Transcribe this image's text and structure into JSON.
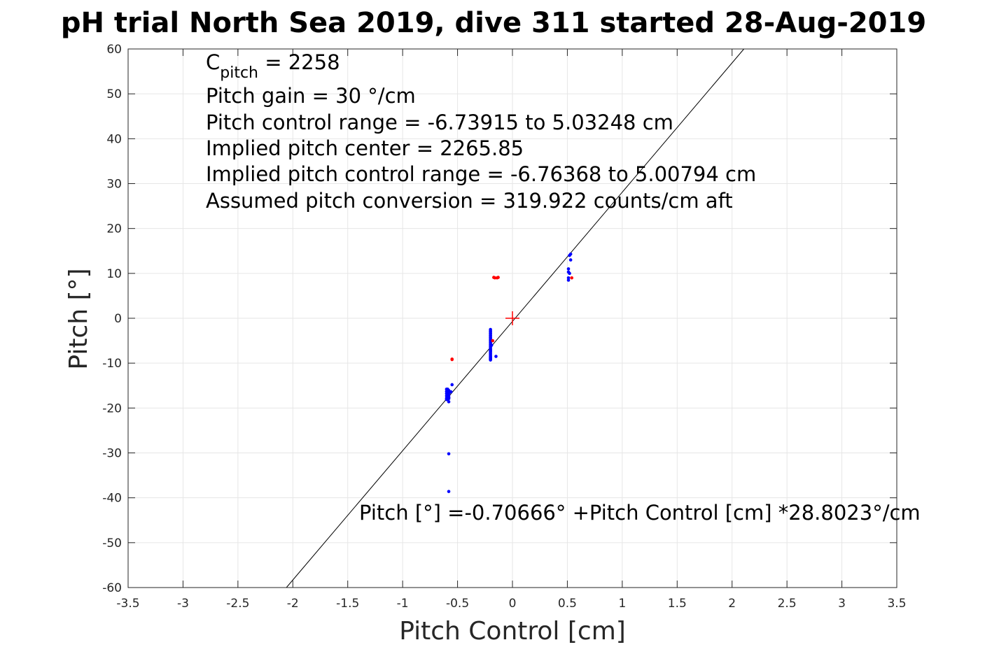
{
  "chart_data": {
    "type": "scatter",
    "title": "pH trial North Sea 2019, dive 311 started 28-Aug-2019",
    "xlabel": "Pitch Control [cm]",
    "ylabel": "Pitch [°]",
    "xlim": [
      -3.5,
      3.5
    ],
    "ylim": [
      -60,
      60
    ],
    "x_ticks": [
      -3.5,
      -3,
      -2.5,
      -2,
      -1.5,
      -1,
      -0.5,
      0,
      0.5,
      1,
      1.5,
      2,
      2.5,
      3,
      3.5
    ],
    "x_tick_labels": [
      "-3.5",
      "-3",
      "-2.5",
      "-2",
      "-1.5",
      "-1",
      "-0.5",
      "0",
      "0.5",
      "1",
      "1.5",
      "2",
      "2.5",
      "3",
      "3.5"
    ],
    "y_ticks": [
      -60,
      -50,
      -40,
      -30,
      -20,
      -10,
      0,
      10,
      20,
      30,
      40,
      50,
      60
    ],
    "y_tick_labels": [
      "-60",
      "-50",
      "-40",
      "-30",
      "-20",
      "-10",
      "0",
      "10",
      "20",
      "30",
      "40",
      "50",
      "60"
    ],
    "grid": true,
    "colors": {
      "blue_points": "#0000ff",
      "red_points": "#ff0000",
      "fit_line": "#000000",
      "grid": "#e6e6e6"
    },
    "annotations": {
      "c_pitch_main": "C",
      "c_pitch_sub": "pitch",
      "c_pitch_value": " = 2258",
      "lines": [
        "Pitch gain = 30 °/cm",
        "Pitch control range = -6.73915 to 5.03248 cm",
        "Implied pitch center = 2265.85",
        "Implied pitch control range = -6.76368 to 5.00794 cm",
        "Assumed pitch conversion = 319.922 counts/cm aft"
      ],
      "fit_equation": "Pitch [°] =-0.70666° +Pitch Control [cm] *28.8023°/cm"
    },
    "fit": {
      "intercept": -0.70666,
      "slope": 28.8023
    },
    "center_marker": {
      "x": 0,
      "y": 0
    },
    "series": [
      {
        "color": "blue",
        "x": [
          -0.6,
          -0.59,
          -0.6,
          -0.59,
          -0.58,
          -0.6,
          -0.59,
          -0.58,
          -0.6,
          -0.59,
          -0.58,
          -0.6,
          -0.59,
          -0.58,
          -0.6,
          -0.59,
          -0.58,
          -0.58,
          -0.58,
          -0.56,
          -0.55,
          -0.58,
          -0.58,
          -0.2,
          -0.2,
          -0.2,
          -0.2,
          -0.2,
          -0.2,
          -0.2,
          -0.2,
          -0.2,
          -0.2,
          -0.2,
          -0.2,
          -0.2,
          -0.2,
          -0.2,
          -0.2,
          -0.2,
          -0.2,
          -0.2,
          -0.2,
          -0.2,
          -0.2,
          -0.2,
          -0.2,
          -0.2,
          -0.2,
          -0.2,
          -0.2,
          -0.2,
          -0.19,
          -0.2,
          -0.2,
          -0.15,
          0.52,
          0.53,
          0.53,
          0.51,
          0.51,
          0.52,
          0.51,
          0.51
        ],
        "y": [
          -15.8,
          -15.8,
          -16.3,
          -16.3,
          -16.1,
          -16.8,
          -16.8,
          -16.7,
          -17.3,
          -17.3,
          -17.2,
          -17.8,
          -17.8,
          -17.7,
          -18.1,
          -18.1,
          -17.6,
          -18.6,
          -17.9,
          -16.4,
          -14.8,
          -30.2,
          -38.6,
          -2.5,
          -3.0,
          -3.5,
          -4.0,
          -4.5,
          -5.0,
          -5.5,
          -6.0,
          -6.5,
          -7.0,
          -7.5,
          -8.0,
          -8.5,
          -9.0,
          -9.3,
          -2.8,
          -3.3,
          -3.8,
          -4.3,
          -4.8,
          -5.3,
          -5.8,
          -6.3,
          -6.8,
          -7.3,
          -7.8,
          -8.3,
          -8.8,
          -9.1,
          -6.0,
          -7.2,
          -8.7,
          -8.5,
          14.0,
          14.3,
          13.0,
          11.0,
          10.3,
          10.0,
          9.0,
          8.5
        ]
      },
      {
        "color": "red",
        "x": [
          -0.55,
          -0.55,
          -0.17,
          -0.16,
          -0.14,
          -0.13,
          -0.18,
          0.54
        ],
        "y": [
          -9.1,
          -9.2,
          9.1,
          9.0,
          9.0,
          9.1,
          -5.0,
          9.0
        ]
      }
    ]
  }
}
